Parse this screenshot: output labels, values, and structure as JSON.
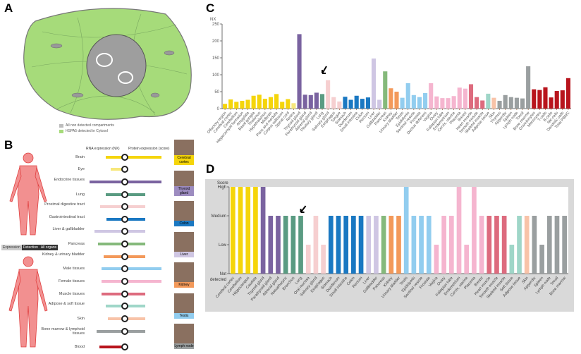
{
  "panels": {
    "a": "A",
    "b": "B",
    "c": "C",
    "d": "D"
  },
  "panel_a": {
    "legend": [
      {
        "label": "All non detected compartments",
        "color": "#bdbdbd"
      },
      {
        "label": "HSPA5 detected in Cytosol",
        "color": "#a6db7a"
      }
    ]
  },
  "panel_b": {
    "header_rna": "RNA expression (NX)",
    "header_protein": "Protein expression (score)",
    "toggle": [
      "Expression",
      "Detection",
      "All organs"
    ],
    "rows": [
      {
        "label": "Brain",
        "color": "#f5d50a",
        "rna": 43,
        "protein": "High"
      },
      {
        "label": "Eye",
        "color": "#f7e77a",
        "rna": 16,
        "protein": "Not detected"
      },
      {
        "label": "Endocrine tissues",
        "color": "#7a63a0",
        "rna": 220,
        "protein": "High"
      },
      {
        "label": "Lung",
        "color": "#5a9b82",
        "rna": 43,
        "protein": "Medium"
      },
      {
        "label": "Proximal digestive tract",
        "color": "#f6cfd0",
        "rna": 84,
        "protein": "Medium"
      },
      {
        "label": "Gastrointestinal tract",
        "color": "#1a78c2",
        "rna": 38,
        "protein": "Medium"
      },
      {
        "label": "Liver & gallbladder",
        "color": "#cfc6e3",
        "rna": 148,
        "protein": "Medium"
      },
      {
        "label": "Pancreas",
        "color": "#85b97b",
        "rna": 110,
        "protein": "Medium"
      },
      {
        "label": "Kidney & urinary bladder",
        "color": "#f3995a",
        "rna": 60,
        "protein": "Medium"
      },
      {
        "label": "Male tissues",
        "color": "#92cdef",
        "rna": 75,
        "protein": "High"
      },
      {
        "label": "Female tissues",
        "color": "#f5b5cf",
        "rna": 75,
        "protein": "High"
      },
      {
        "label": "Muscle tissues",
        "color": "#dd6b7e",
        "rna": 72,
        "protein": "Medium"
      },
      {
        "label": "Adipose & soft tissue",
        "color": "#9fd6c8",
        "rna": 44,
        "protein": "Medium"
      },
      {
        "label": "Skin",
        "color": "#f8c3a8",
        "rna": 32,
        "protein": "Medium"
      },
      {
        "label": "Bone marrow & lymphoid tissues",
        "color": "#9a9fa0",
        "rna": 125,
        "protein": "Medium"
      },
      {
        "label": "Blood",
        "color": "#b8141c",
        "rna": 90,
        "protein": "Not detected"
      }
    ],
    "thumbnails": [
      {
        "label": "Cerebral cortex",
        "color": "#f5d50a"
      },
      {
        "label": "Thyroid gland",
        "color": "#9d8cc0"
      },
      {
        "label": "Colon",
        "color": "#1a78c2"
      },
      {
        "label": "Liver",
        "color": "#cfc6e3"
      },
      {
        "label": "Kidney",
        "color": "#f3995a"
      },
      {
        "label": "Testis",
        "color": "#92cdef"
      },
      {
        "label": "Lymph node",
        "color": "#9a9fa0"
      }
    ]
  },
  "chart_data": [
    {
      "type": "bar",
      "ylabel": "NX",
      "ylim": [
        0,
        250
      ],
      "yticks": [
        0,
        50,
        100,
        150,
        200,
        250
      ],
      "annotation": "arrow pointing to Lung",
      "categories": [
        "Olfactory region",
        "Cerebral cortex",
        "Cerebellum",
        "Hippocampal formation",
        "Amygdala",
        "Basal ganglia",
        "Thalamus",
        "Hypothalamus",
        "Midbrain",
        "Pons and medulla",
        "Corpus callosum",
        "Spinal cord",
        "Retina",
        "Thyroid gland",
        "Parathyroid gland",
        "Adrenal gland",
        "Pituitary gland",
        "Lung",
        "Salivary gland",
        "Esophagus",
        "Tongue",
        "Stomach",
        "Duodenum",
        "Small intestine",
        "Colon",
        "Rectum",
        "Liver",
        "Gallbladder",
        "Pancreas",
        "Kidney",
        "Urinary bladder",
        "Testis",
        "Epididymis",
        "Seminal vesicle",
        "Prostate",
        "Ductus deferens",
        "Vagina",
        "Ovary",
        "Fallopian tube",
        "Endometrium",
        "Cervix, uterine",
        "Placenta",
        "Breast",
        "Heart muscle",
        "Smooth muscle",
        "Skeletal muscle",
        "Adipose tissue",
        "Skin",
        "Thymus",
        "Appendix",
        "Spleen",
        "Lymph node",
        "Tonsil",
        "Bone marrow",
        "Granulocytes",
        "Monocytes",
        "T-cells",
        "B-cells",
        "NK-cells",
        "Dendritic cells",
        "Total PBMC"
      ],
      "values": [
        14,
        27,
        20,
        23,
        26,
        38,
        41,
        29,
        34,
        43,
        20,
        28,
        16,
        220,
        41,
        40,
        47,
        43,
        84,
        34,
        21,
        35,
        26,
        38,
        29,
        33,
        148,
        26,
        110,
        60,
        50,
        32,
        75,
        40,
        34,
        46,
        75,
        36,
        31,
        31,
        37,
        62,
        59,
        72,
        34,
        24,
        44,
        32,
        23,
        40,
        34,
        32,
        30,
        125,
        57,
        55,
        63,
        33,
        52,
        54,
        90
      ],
      "colors": [
        "#f5d50a",
        "#f5d50a",
        "#f5d50a",
        "#f5d50a",
        "#f5d50a",
        "#f5d50a",
        "#f5d50a",
        "#f5d50a",
        "#f5d50a",
        "#f5d50a",
        "#f5d50a",
        "#f5d50a",
        "#f7e77a",
        "#7a63a0",
        "#7a63a0",
        "#7a63a0",
        "#7a63a0",
        "#5a9b82",
        "#f6cfd0",
        "#f6cfd0",
        "#f6cfd0",
        "#1a78c2",
        "#1a78c2",
        "#1a78c2",
        "#1a78c2",
        "#1a78c2",
        "#cfc6e3",
        "#cfc6e3",
        "#85b97b",
        "#f3995a",
        "#f3995a",
        "#92cdef",
        "#92cdef",
        "#92cdef",
        "#92cdef",
        "#92cdef",
        "#f5b5cf",
        "#f5b5cf",
        "#f5b5cf",
        "#f5b5cf",
        "#f5b5cf",
        "#f5b5cf",
        "#f5b5cf",
        "#dd6b7e",
        "#dd6b7e",
        "#dd6b7e",
        "#9fd6c8",
        "#f8c3a8",
        "#9a9fa0",
        "#9a9fa0",
        "#9a9fa0",
        "#9a9fa0",
        "#9a9fa0",
        "#9a9fa0",
        "#b8141c",
        "#b8141c",
        "#b8141c",
        "#b8141c",
        "#b8141c",
        "#b8141c",
        "#b8141c"
      ]
    },
    {
      "type": "bar",
      "ylabel": "Score",
      "yticks": [
        "Not detected",
        "Low",
        "Medium",
        "High"
      ],
      "ylim": [
        0,
        3
      ],
      "annotation": "arrow pointing to Lung",
      "categories": [
        "Cerebral cortex",
        "Cerebellum",
        "Hippocampus",
        "Caudate",
        "Thyroid gland",
        "Parathyroid gland",
        "Adrenal gland",
        "Nasopharynx",
        "Bronchus",
        "Lung",
        "Oral mucosa",
        "Salivary gland",
        "Esophagus",
        "Stomach",
        "Duodenum",
        "Small intestine",
        "Colon",
        "Rectum",
        "Liver",
        "Gallbladder",
        "Pancreas",
        "Kidney",
        "Urinary bladder",
        "Testis",
        "Epididymis",
        "Seminal vesicle",
        "Prostate",
        "Vagina",
        "Ovary",
        "Fallopian tube",
        "Endometrium",
        "Cervix, uterine",
        "Placenta",
        "Breast",
        "Heart muscle",
        "Smooth muscle",
        "Skeletal muscle",
        "Soft tissue",
        "Adipose tissue",
        "Skin",
        "Appendix",
        "Spleen",
        "Lymph node",
        "Tonsil",
        "Bone marrow"
      ],
      "values": [
        3,
        3,
        3,
        3,
        3,
        2,
        2,
        2,
        2,
        2,
        1,
        2,
        1,
        2,
        2,
        2,
        2,
        2,
        2,
        2,
        2,
        2,
        2,
        3,
        2,
        2,
        2,
        1,
        2,
        2,
        3,
        1,
        3,
        2,
        2,
        2,
        2,
        1,
        2,
        2,
        2,
        1,
        2,
        2,
        2
      ],
      "colors": [
        "#f5d50a",
        "#f5d50a",
        "#f5d50a",
        "#f5d50a",
        "#7a63a0",
        "#7a63a0",
        "#7a63a0",
        "#5a9b82",
        "#5a9b82",
        "#5a9b82",
        "#f6cfd0",
        "#f6cfd0",
        "#f6cfd0",
        "#1a78c2",
        "#1a78c2",
        "#1a78c2",
        "#1a78c2",
        "#1a78c2",
        "#cfc6e3",
        "#cfc6e3",
        "#85b97b",
        "#f3995a",
        "#f3995a",
        "#92cdef",
        "#92cdef",
        "#92cdef",
        "#92cdef",
        "#f5b5cf",
        "#f5b5cf",
        "#f5b5cf",
        "#f5b5cf",
        "#f5b5cf",
        "#f5b5cf",
        "#f5b5cf",
        "#dd6b7e",
        "#dd6b7e",
        "#dd6b7e",
        "#9fd6c8",
        "#9fd6c8",
        "#f8c3a8",
        "#9a9fa0",
        "#9a9fa0",
        "#9a9fa0",
        "#9a9fa0",
        "#9a9fa0"
      ]
    }
  ]
}
